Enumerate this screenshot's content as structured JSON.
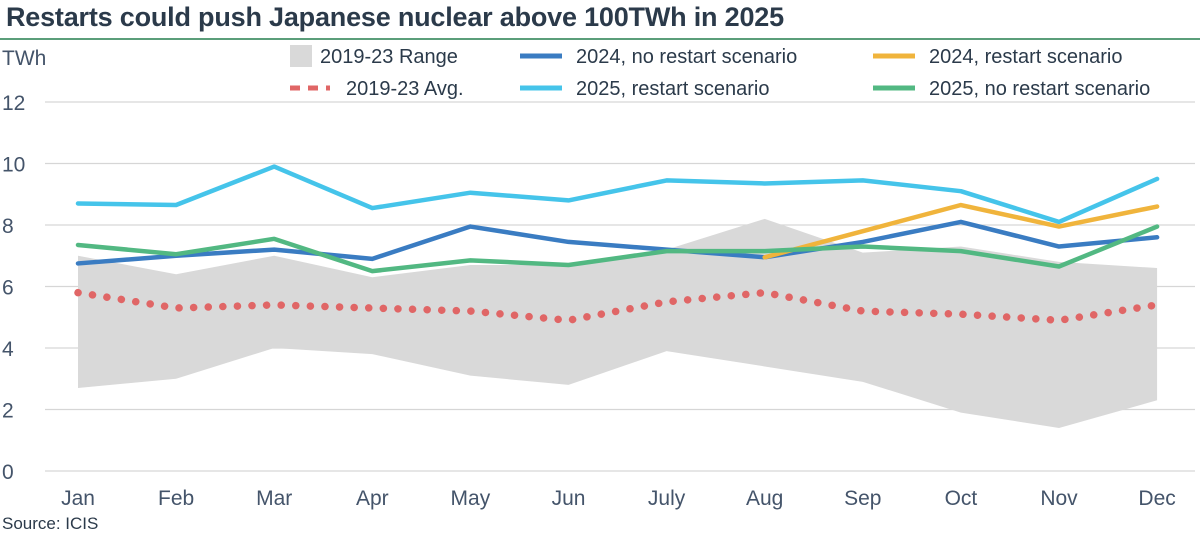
{
  "title": "Restarts could push Japanese nuclear above 100TWh in 2025",
  "source": "Source: ICIS",
  "colors": {
    "range": "#d9d9d9",
    "avg": "#e06666",
    "2024_no_restart": "#3a7cc2",
    "2024_restart": "#f0b43c",
    "2025_restart": "#45c4ea",
    "2025_no_restart": "#52b882",
    "grid": "#d6d6d6",
    "text": "#44546a"
  },
  "chart_data": {
    "type": "line",
    "ylabel": "TWh",
    "ylim": [
      0,
      12
    ],
    "yticks": [
      "0",
      "2",
      "4",
      "6",
      "8",
      "10",
      "12"
    ],
    "grid": "horizontal",
    "legend_position": "top",
    "categories": [
      "Jan",
      "Feb",
      "Mar",
      "Apr",
      "May",
      "Jun",
      "July",
      "Aug",
      "Sep",
      "Oct",
      "Nov",
      "Dec"
    ],
    "range": {
      "name": "2019-23 Range",
      "low": [
        2.7,
        3.0,
        4.0,
        3.8,
        3.1,
        2.8,
        3.9,
        3.4,
        2.9,
        1.9,
        1.4,
        2.3
      ],
      "high": [
        7.0,
        6.4,
        7.0,
        6.3,
        6.7,
        6.7,
        7.2,
        8.2,
        7.1,
        7.3,
        6.8,
        6.6
      ]
    },
    "series": [
      {
        "name": "2019-23 Avg.",
        "style": "dotted",
        "color_key": "avg",
        "values": [
          5.8,
          5.3,
          5.4,
          5.3,
          5.2,
          4.9,
          5.5,
          5.8,
          5.2,
          5.1,
          4.9,
          5.4
        ]
      },
      {
        "name": "2024, no restart scenario",
        "style": "solid",
        "color_key": "2024_no_restart",
        "values": [
          6.75,
          7.0,
          7.2,
          6.9,
          7.95,
          7.45,
          7.2,
          6.95,
          7.45,
          8.1,
          7.3,
          7.6
        ]
      },
      {
        "name": "2024, restart scenario",
        "style": "solid",
        "color_key": "2024_restart",
        "values": [
          null,
          null,
          null,
          null,
          null,
          null,
          null,
          6.95,
          7.8,
          8.65,
          7.95,
          8.6
        ]
      },
      {
        "name": "2025, restart scenario",
        "style": "solid",
        "color_key": "2025_restart",
        "values": [
          8.7,
          8.65,
          9.9,
          8.55,
          9.05,
          8.8,
          9.45,
          9.35,
          9.45,
          9.1,
          8.1,
          9.5
        ]
      },
      {
        "name": "2025, no restart scenario",
        "style": "solid",
        "color_key": "2025_no_restart",
        "values": [
          7.35,
          7.05,
          7.55,
          6.5,
          6.85,
          6.7,
          7.15,
          7.15,
          7.3,
          7.15,
          6.65,
          7.95
        ]
      }
    ]
  }
}
